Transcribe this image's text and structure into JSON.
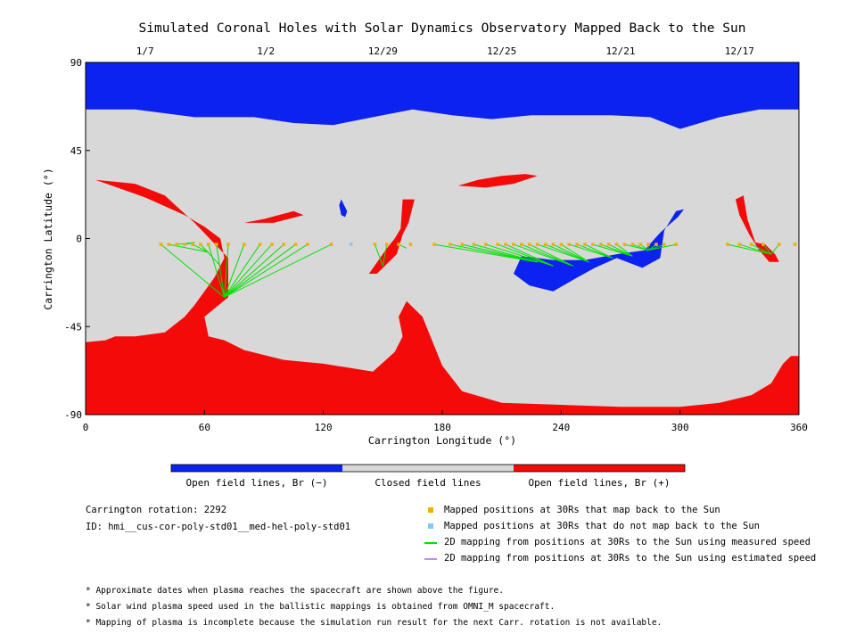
{
  "chart_data": {
    "type": "scatter",
    "title": "Simulated Coronal Holes with Solar Dynamics Observatory Mapped Back to the Sun",
    "xlabel": "Carrington Longitude (°)",
    "ylabel": "Carrington Latitude (°)",
    "xlim": [
      0,
      360
    ],
    "ylim": [
      -90,
      90
    ],
    "xticks": [
      "0",
      "60",
      "120",
      "180",
      "240",
      "300",
      "360"
    ],
    "xtick_values": [
      0,
      60,
      120,
      180,
      240,
      300,
      360
    ],
    "yticks": [
      "90",
      "45",
      "0",
      "-45",
      "-90"
    ],
    "ytick_values": [
      90,
      45,
      0,
      -45,
      -90
    ],
    "top_dates": [
      {
        "label": "1/7",
        "lon": 30
      },
      {
        "label": "1/2",
        "lon": 91
      },
      {
        "label": "12/29",
        "lon": 150
      },
      {
        "label": "12/25",
        "lon": 210
      },
      {
        "label": "12/21",
        "lon": 270
      },
      {
        "label": "12/17",
        "lon": 330
      }
    ],
    "colors": {
      "open_negative": "#0b22f0",
      "closed": "#d8d8d8",
      "open_positive": "#f50a0a",
      "mapped": "#f0b000",
      "unmapped": "#88c8f8",
      "measured_line": "#00e000",
      "estimated_line": "#c08cf0"
    },
    "regions": {
      "open_negative": [
        [
          [
            0,
            90
          ],
          [
            360,
            90
          ],
          [
            360,
            66
          ],
          [
            340,
            66
          ],
          [
            320,
            62
          ],
          [
            300,
            56
          ],
          [
            285,
            62
          ],
          [
            265,
            63
          ],
          [
            245,
            63
          ],
          [
            225,
            63
          ],
          [
            205,
            61
          ],
          [
            185,
            63
          ],
          [
            165,
            66
          ],
          [
            145,
            62
          ],
          [
            125,
            58
          ],
          [
            105,
            59
          ],
          [
            85,
            62
          ],
          [
            55,
            62
          ],
          [
            25,
            66
          ],
          [
            0,
            66
          ]
        ],
        [
          [
            220,
            -9
          ],
          [
            236,
            -11
          ],
          [
            252,
            -11
          ],
          [
            268,
            -8
          ],
          [
            282,
            -6
          ],
          [
            290,
            3
          ],
          [
            299,
            11
          ],
          [
            302,
            15
          ],
          [
            298,
            14
          ],
          [
            292,
            4
          ],
          [
            290,
            -10
          ],
          [
            281,
            -15
          ],
          [
            268,
            -10
          ],
          [
            257,
            -15
          ],
          [
            248,
            -20
          ],
          [
            236,
            -27
          ],
          [
            224,
            -24
          ],
          [
            216,
            -18
          ]
        ],
        [
          [
            129,
            20
          ],
          [
            131,
            16
          ],
          [
            132,
            14
          ],
          [
            131,
            11
          ],
          [
            129,
            12
          ],
          [
            128,
            17
          ]
        ]
      ],
      "open_positive": [
        [
          [
            0,
            -53
          ],
          [
            10,
            -52
          ],
          [
            15,
            -50
          ],
          [
            25,
            -50
          ],
          [
            40,
            -48
          ],
          [
            50,
            -40
          ],
          [
            55,
            -34
          ],
          [
            60,
            -27
          ],
          [
            65,
            -20
          ],
          [
            70,
            -10
          ],
          [
            68,
            0
          ],
          [
            60,
            6
          ],
          [
            50,
            12
          ],
          [
            30,
            21
          ],
          [
            5,
            30
          ],
          [
            25,
            28
          ],
          [
            40,
            22
          ],
          [
            55,
            8
          ],
          [
            72,
            -10
          ],
          [
            72,
            -30
          ],
          [
            60,
            -40
          ],
          [
            62,
            -50
          ],
          [
            70,
            -52
          ],
          [
            80,
            -57
          ],
          [
            100,
            -62
          ],
          [
            120,
            -64
          ],
          [
            145,
            -68
          ],
          [
            156,
            -58
          ],
          [
            160,
            -50
          ],
          [
            158,
            -40
          ],
          [
            162,
            -32
          ],
          [
            170,
            -40
          ],
          [
            180,
            -65
          ],
          [
            190,
            -78
          ],
          [
            210,
            -84
          ],
          [
            240,
            -85
          ],
          [
            270,
            -86
          ],
          [
            300,
            -86
          ],
          [
            320,
            -84
          ],
          [
            336,
            -80
          ],
          [
            346,
            -74
          ],
          [
            352,
            -64
          ],
          [
            356,
            -60
          ],
          [
            360,
            -60
          ],
          [
            360,
            -90
          ],
          [
            0,
            -90
          ]
        ],
        [
          [
            33,
            -54
          ],
          [
            37,
            -52
          ],
          [
            37,
            -56
          ],
          [
            31,
            -57
          ],
          [
            28,
            -55
          ]
        ],
        [
          [
            188,
            27
          ],
          [
            198,
            30
          ],
          [
            210,
            32
          ],
          [
            222,
            33
          ],
          [
            228,
            32
          ],
          [
            216,
            28
          ],
          [
            202,
            26
          ]
        ],
        [
          [
            160,
            20
          ],
          [
            166,
            20
          ],
          [
            163,
            8
          ],
          [
            160,
            2
          ],
          [
            157,
            -8
          ],
          [
            147,
            -18
          ],
          [
            143,
            -18
          ],
          [
            152,
            -5
          ],
          [
            156,
            0
          ],
          [
            159,
            5
          ]
        ],
        [
          [
            338,
            -2
          ],
          [
            343,
            -3
          ],
          [
            348,
            -8
          ],
          [
            350,
            -12
          ],
          [
            345,
            -12
          ],
          [
            340,
            -6
          ],
          [
            335,
            2
          ],
          [
            330,
            12
          ],
          [
            328,
            20
          ],
          [
            332,
            22
          ],
          [
            334,
            10
          ]
        ],
        [
          [
            80,
            8
          ],
          [
            90,
            10
          ],
          [
            105,
            14
          ],
          [
            110,
            12
          ],
          [
            95,
            8
          ]
        ]
      ]
    },
    "mapped_points": [
      {
        "lon": 38,
        "lat": -3
      },
      {
        "lon": 42,
        "lat": -3
      },
      {
        "lon": 46,
        "lat": -3
      },
      {
        "lon": 50,
        "lat": -3
      },
      {
        "lon": 54,
        "lat": -3
      },
      {
        "lon": 58,
        "lat": -3
      },
      {
        "lon": 62,
        "lat": -3
      },
      {
        "lon": 66,
        "lat": -3
      },
      {
        "lon": 72,
        "lat": -3
      },
      {
        "lon": 80,
        "lat": -3
      },
      {
        "lon": 88,
        "lat": -3
      },
      {
        "lon": 94,
        "lat": -3
      },
      {
        "lon": 100,
        "lat": -3
      },
      {
        "lon": 106,
        "lat": -3
      },
      {
        "lon": 112,
        "lat": -3
      },
      {
        "lon": 124,
        "lat": -3
      },
      {
        "lon": 146,
        "lat": -3
      },
      {
        "lon": 152,
        "lat": -3
      },
      {
        "lon": 158,
        "lat": -3
      },
      {
        "lon": 164,
        "lat": -3
      },
      {
        "lon": 176,
        "lat": -3
      },
      {
        "lon": 184,
        "lat": -3
      },
      {
        "lon": 190,
        "lat": -3
      },
      {
        "lon": 196,
        "lat": -3
      },
      {
        "lon": 202,
        "lat": -3
      },
      {
        "lon": 208,
        "lat": -3
      },
      {
        "lon": 212,
        "lat": -3
      },
      {
        "lon": 216,
        "lat": -3
      },
      {
        "lon": 220,
        "lat": -3
      },
      {
        "lon": 224,
        "lat": -3
      },
      {
        "lon": 228,
        "lat": -3
      },
      {
        "lon": 232,
        "lat": -3
      },
      {
        "lon": 236,
        "lat": -3
      },
      {
        "lon": 240,
        "lat": -3
      },
      {
        "lon": 244,
        "lat": -3
      },
      {
        "lon": 248,
        "lat": -3
      },
      {
        "lon": 252,
        "lat": -3
      },
      {
        "lon": 256,
        "lat": -3
      },
      {
        "lon": 260,
        "lat": -3
      },
      {
        "lon": 264,
        "lat": -3
      },
      {
        "lon": 268,
        "lat": -3
      },
      {
        "lon": 272,
        "lat": -3
      },
      {
        "lon": 276,
        "lat": -3
      },
      {
        "lon": 280,
        "lat": -3
      },
      {
        "lon": 284,
        "lat": -3
      },
      {
        "lon": 288,
        "lat": -3
      },
      {
        "lon": 292,
        "lat": -3
      },
      {
        "lon": 298,
        "lat": -3
      },
      {
        "lon": 324,
        "lat": -3
      },
      {
        "lon": 330,
        "lat": -3
      },
      {
        "lon": 336,
        "lat": -3
      },
      {
        "lon": 342,
        "lat": -3
      },
      {
        "lon": 350,
        "lat": -3
      },
      {
        "lon": 358,
        "lat": -3
      }
    ],
    "unmapped_points": [
      {
        "lon": 134,
        "lat": -3
      }
    ],
    "footpoints": [
      {
        "lon": 70,
        "lat": -30
      },
      {
        "lon": 68,
        "lat": -14
      },
      {
        "lon": 62,
        "lat": -7
      },
      {
        "lon": 55,
        "lat": -2
      },
      {
        "lon": 150,
        "lat": -14
      },
      {
        "lon": 162,
        "lat": -5
      },
      {
        "lon": 228,
        "lat": -12
      },
      {
        "lon": 236,
        "lat": -14
      },
      {
        "lon": 246,
        "lat": -14
      },
      {
        "lon": 254,
        "lat": -12
      },
      {
        "lon": 266,
        "lat": -10
      },
      {
        "lon": 276,
        "lat": -9
      },
      {
        "lon": 284,
        "lat": -6
      },
      {
        "lon": 346,
        "lat": -8
      }
    ],
    "mapping_lines": [
      [
        0,
        0
      ],
      [
        1,
        2
      ],
      [
        2,
        3
      ],
      [
        3,
        3
      ],
      [
        4,
        2
      ],
      [
        5,
        1
      ],
      [
        6,
        0
      ],
      [
        7,
        0
      ],
      [
        8,
        0
      ],
      [
        9,
        0
      ],
      [
        10,
        0
      ],
      [
        11,
        0
      ],
      [
        12,
        0
      ],
      [
        13,
        0
      ],
      [
        14,
        0
      ],
      [
        15,
        0
      ],
      [
        16,
        4
      ],
      [
        17,
        4
      ],
      [
        18,
        5
      ],
      [
        20,
        6
      ],
      [
        21,
        6
      ],
      [
        22,
        6
      ],
      [
        23,
        6
      ],
      [
        24,
        7
      ],
      [
        25,
        7
      ],
      [
        26,
        7
      ],
      [
        27,
        8
      ],
      [
        28,
        8
      ],
      [
        29,
        8
      ],
      [
        30,
        9
      ],
      [
        31,
        9
      ],
      [
        32,
        9
      ],
      [
        33,
        9
      ],
      [
        34,
        10
      ],
      [
        35,
        10
      ],
      [
        36,
        10
      ],
      [
        37,
        11
      ],
      [
        38,
        11
      ],
      [
        39,
        11
      ],
      [
        40,
        11
      ],
      [
        41,
        12
      ],
      [
        42,
        12
      ],
      [
        43,
        12
      ],
      [
        44,
        12
      ],
      [
        45,
        12
      ],
      [
        46,
        12
      ],
      [
        47,
        12
      ],
      [
        48,
        13
      ],
      [
        49,
        13
      ],
      [
        50,
        13
      ],
      [
        51,
        13
      ],
      [
        52,
        13
      ]
    ],
    "colorbar": {
      "segments": [
        {
          "label": "Open field lines, Br (−)",
          "color": "#0b22f0"
        },
        {
          "label": "Closed field lines",
          "color": "#d8d8d8"
        },
        {
          "label": "Open field lines, Br (+)",
          "color": "#f50a0a"
        }
      ]
    }
  },
  "info": {
    "rotation": "Carrington rotation: 2292",
    "id": "ID: hmi__cus-cor-poly-std01__med-hel-poly-std01"
  },
  "legend": [
    {
      "label": "Mapped positions at 30Rs that map back to the Sun",
      "color": "#f0b000",
      "kind": "square"
    },
    {
      "label": "Mapped positions at 30Rs that do not map back to the Sun",
      "color": "#88c8f8",
      "kind": "square"
    },
    {
      "label": "2D mapping from positions at 30Rs to the Sun using measured speed",
      "color": "#00e000",
      "kind": "line"
    },
    {
      "label": "2D mapping from positions at 30Rs to the Sun using estimated speed",
      "color": "#c08cf0",
      "kind": "line"
    }
  ],
  "footnotes": [
    "* Approximate dates when plasma reaches the spacecraft are shown above the figure.",
    "* Solar wind plasma speed used in the ballistic mappings is obtained from OMNI_M spacecraft.",
    "* Mapping of plasma is incomplete because the simulation run result for the next Carr. rotation is not available."
  ]
}
